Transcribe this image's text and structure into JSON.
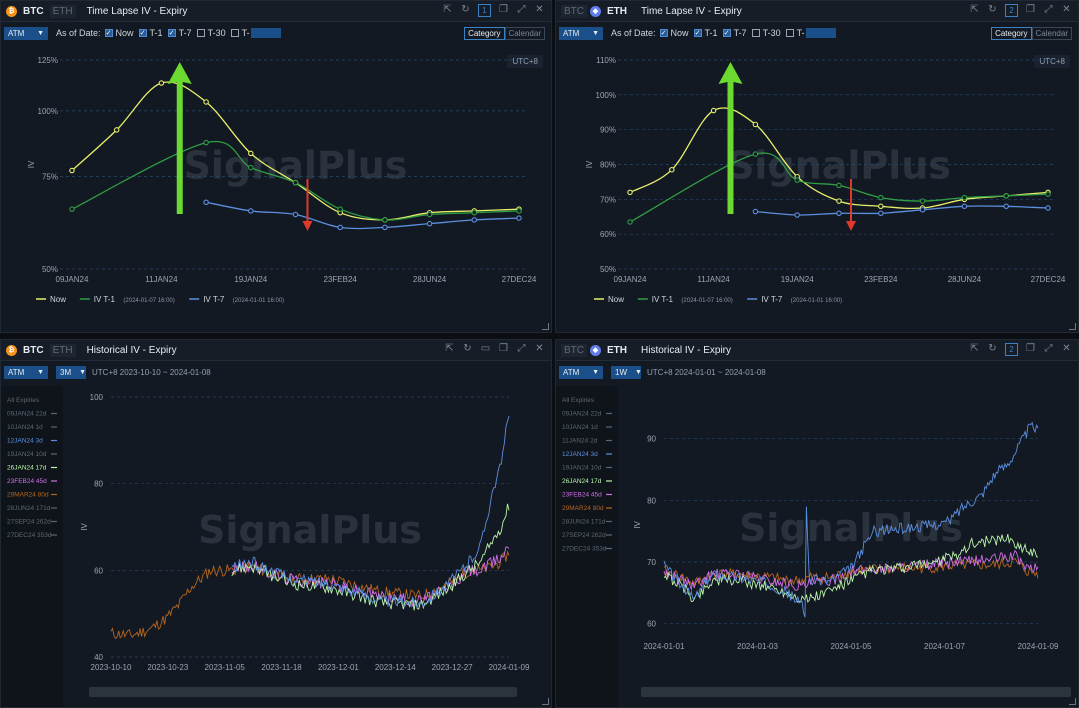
{
  "panels": [
    {
      "id": "tl",
      "assets": [
        "BTC",
        "ETH"
      ],
      "active_asset": "BTC",
      "title": "Time Lapse IV - Expiry",
      "badge": "1",
      "toolbar": {
        "select": "ATM",
        "as_of": "As of Date:",
        "checks": [
          {
            "label": "Now",
            "on": true
          },
          {
            "label": "T-1",
            "on": true
          },
          {
            "label": "T-7",
            "on": true
          },
          {
            "label": "T-30",
            "on": false
          },
          {
            "label": "T-",
            "on": false
          }
        ]
      },
      "view_tabs": [
        "Category",
        "Calendar"
      ],
      "active_tab": "Category",
      "tz": "UTC+8",
      "watermark": "SignalPlus"
    },
    {
      "id": "tr",
      "assets": [
        "BTC",
        "ETH"
      ],
      "active_asset": "ETH",
      "title": "Time Lapse IV - Expiry",
      "badge": "2",
      "toolbar": {
        "select": "ATM",
        "as_of": "As of Date:",
        "checks": [
          {
            "label": "Now",
            "on": true
          },
          {
            "label": "T-1",
            "on": true
          },
          {
            "label": "T-7",
            "on": true
          },
          {
            "label": "T-30",
            "on": false
          },
          {
            "label": "T-",
            "on": false
          }
        ]
      },
      "view_tabs": [
        "Category",
        "Calendar"
      ],
      "active_tab": "Category",
      "tz": "UTC+8",
      "watermark": "SignalPlus"
    },
    {
      "id": "bl",
      "assets": [
        "BTC",
        "ETH"
      ],
      "active_asset": "BTC",
      "title": "Historical IV - Expiry",
      "toolbar": {
        "select": "ATM",
        "period": "3M",
        "range": "UTC+8 2023-10-10 ~ 2024-01-08"
      },
      "expiries": [
        {
          "label": "All Expiries",
          "color": "#5c6672"
        },
        {
          "label": "09JAN24 22d",
          "color": "#5c6672"
        },
        {
          "label": "10JAN24 1d",
          "color": "#5c6672"
        },
        {
          "label": "12JAN24 3d",
          "color": "#5b8fe0"
        },
        {
          "label": "19JAN24 10d",
          "color": "#5c6672"
        },
        {
          "label": "26JAN24 17d",
          "color": "#b9f5a8"
        },
        {
          "label": "23FEB24 45d",
          "color": "#d06ee8"
        },
        {
          "label": "29MAR24 80d",
          "color": "#b5651d"
        },
        {
          "label": "28JUN24 171d",
          "color": "#5c6672"
        },
        {
          "label": "27SEP24 262d",
          "color": "#5c6672"
        },
        {
          "label": "27DEC24 353d",
          "color": "#5c6672"
        }
      ],
      "watermark": "SignalPlus"
    },
    {
      "id": "br",
      "assets": [
        "BTC",
        "ETH"
      ],
      "active_asset": "ETH",
      "title": "Historical IV - Expiry",
      "badge": "2",
      "toolbar": {
        "select": "ATM",
        "period": "1W",
        "range": "UTC+8 2024-01-01 ~ 2024-01-08"
      },
      "expiries": [
        {
          "label": "All Expiries",
          "color": "#5c6672"
        },
        {
          "label": "09JAN24 22d",
          "color": "#5c6672"
        },
        {
          "label": "10JAN24 1d",
          "color": "#5c6672"
        },
        {
          "label": "11JAN24 2d",
          "color": "#5c6672"
        },
        {
          "label": "12JAN24 3d",
          "color": "#5b8fe0"
        },
        {
          "label": "19JAN24 10d",
          "color": "#5c6672"
        },
        {
          "label": "26JAN24 17d",
          "color": "#b9f5a8"
        },
        {
          "label": "23FEB24 45d",
          "color": "#d06ee8"
        },
        {
          "label": "29MAR24 80d",
          "color": "#b5651d"
        },
        {
          "label": "28JUN24 171d",
          "color": "#5c6672"
        },
        {
          "label": "27SEP24 262d",
          "color": "#5c6672"
        },
        {
          "label": "27DEC24 353d",
          "color": "#5c6672"
        }
      ],
      "watermark": "SignalPlus"
    }
  ],
  "chart_data": [
    {
      "type": "line",
      "ylabel": "IV",
      "yscale": "log",
      "ylim": [
        50,
        125
      ],
      "yticks": [
        "125%",
        "100%",
        "75%",
        "50%"
      ],
      "ytick_values": [
        125,
        100,
        75,
        50
      ],
      "categories": [
        "09JAN24",
        "10JAN24",
        "11JAN24",
        "12JAN24",
        "19JAN24",
        "26JAN24",
        "23FEB24",
        "29MAR24",
        "28JUN24",
        "27SEP24",
        "27DEC24"
      ],
      "xtick_labels": [
        "09JAN24",
        "11JAN24",
        "19JAN24",
        "23FEB24",
        "28JUN24",
        "27DEC24"
      ],
      "series": [
        {
          "name": "Now",
          "color": "#e8ef6a",
          "values": [
            77,
            92,
            113,
            104,
            83,
            73,
            64,
            62,
            64,
            64.5,
            65
          ]
        },
        {
          "name": "IV T-1",
          "sub": "(2024-01-07 16:00)",
          "color": "#2f9e44",
          "values": [
            65,
            null,
            null,
            87,
            78,
            73,
            65,
            62,
            63.5,
            64,
            64.5
          ]
        },
        {
          "name": "IV T-7",
          "sub": "(2024-01-01 16:00)",
          "color": "#5b8fe0",
          "values": [
            null,
            null,
            null,
            67,
            64.5,
            63.5,
            60,
            60,
            61,
            62,
            62.5
          ]
        }
      ],
      "annotations": [
        {
          "kind": "arrow-up",
          "color": "#6bd92f"
        },
        {
          "kind": "arrow-down",
          "color": "#e0382b"
        }
      ],
      "legend": "bottom-left"
    },
    {
      "type": "line",
      "ylabel": "IV",
      "ylim": [
        50,
        110
      ],
      "yticks": [
        "110%",
        "100%",
        "90%",
        "80%",
        "70%",
        "60%",
        "50%"
      ],
      "ytick_values": [
        110,
        100,
        90,
        80,
        70,
        60,
        50
      ],
      "categories": [
        "09JAN24",
        "10JAN24",
        "11JAN24",
        "12JAN24",
        "19JAN24",
        "26JAN24",
        "23FEB24",
        "29MAR24",
        "28JUN24",
        "27SEP24",
        "27DEC24"
      ],
      "xtick_labels": [
        "09JAN24",
        "11JAN24",
        "19JAN24",
        "23FEB24",
        "28JUN24",
        "27DEC24"
      ],
      "series": [
        {
          "name": "Now",
          "color": "#e8ef6a",
          "values": [
            72,
            78.5,
            95.5,
            91.5,
            76.5,
            69.5,
            68,
            67.5,
            70,
            71,
            72
          ]
        },
        {
          "name": "IV T-1",
          "sub": "(2024-01-07 16:00)",
          "color": "#2f9e44",
          "values": [
            63.5,
            null,
            null,
            83,
            75.5,
            74,
            70.5,
            69.5,
            70.5,
            71,
            71.5
          ]
        },
        {
          "name": "IV T-7",
          "sub": "(2024-01-01 16:00)",
          "color": "#5b8fe0",
          "values": [
            null,
            null,
            null,
            66.5,
            65.5,
            66,
            66,
            67,
            68,
            68,
            67.5
          ]
        }
      ],
      "annotations": [
        {
          "kind": "arrow-up",
          "color": "#6bd92f"
        },
        {
          "kind": "arrow-down",
          "color": "#e0382b"
        }
      ],
      "legend": "bottom-left"
    },
    {
      "type": "line",
      "ylabel": "IV",
      "ylim": [
        40,
        100
      ],
      "yticks": [
        "100",
        "80",
        "60",
        "40"
      ],
      "ytick_values": [
        100,
        80,
        60,
        40
      ],
      "x_start": "2023-10-10",
      "x_end": "2024-01-09",
      "xtick_labels": [
        "2023-10-10",
        "2023-10-23",
        "2023-11-05",
        "2023-11-18",
        "2023-12-01",
        "2023-12-14",
        "2023-12-27",
        "2024-01-09"
      ],
      "series": [
        {
          "name": "12JAN24 3d",
          "color": "#5b8fe0",
          "anchors": [
            [
              0.0,
              null
            ],
            [
              0.25,
              null
            ],
            [
              0.3,
              60.5
            ],
            [
              0.35,
              62
            ],
            [
              0.45,
              58
            ],
            [
              0.55,
              57
            ],
            [
              0.68,
              53
            ],
            [
              0.78,
              52.5
            ],
            [
              0.85,
              57
            ],
            [
              0.9,
              62
            ],
            [
              0.93,
              66
            ],
            [
              0.96,
              79
            ],
            [
              0.98,
              84
            ],
            [
              1.0,
              97
            ]
          ]
        },
        {
          "name": "26JAN24 17d",
          "color": "#b9f5a8",
          "anchors": [
            [
              0.0,
              null
            ],
            [
              0.25,
              null
            ],
            [
              0.3,
              60
            ],
            [
              0.35,
              61
            ],
            [
              0.45,
              57
            ],
            [
              0.55,
              56
            ],
            [
              0.68,
              52.5
            ],
            [
              0.78,
              52
            ],
            [
              0.85,
              56
            ],
            [
              0.9,
              60
            ],
            [
              0.93,
              62
            ],
            [
              0.96,
              67
            ],
            [
              0.98,
              70
            ],
            [
              1.0,
              75
            ]
          ]
        },
        {
          "name": "23FEB24 45d",
          "color": "#d06ee8",
          "anchors": [
            [
              0.0,
              null
            ],
            [
              0.25,
              null
            ],
            [
              0.3,
              60
            ],
            [
              0.35,
              61
            ],
            [
              0.45,
              58
            ],
            [
              0.55,
              57
            ],
            [
              0.68,
              54
            ],
            [
              0.78,
              53
            ],
            [
              0.85,
              56
            ],
            [
              0.9,
              60
            ],
            [
              0.93,
              60
            ],
            [
              0.96,
              62
            ],
            [
              0.98,
              63
            ],
            [
              1.0,
              66
            ]
          ]
        },
        {
          "name": "29MAR24 80d",
          "color": "#b5651d",
          "anchors": [
            [
              0.0,
              45.5
            ],
            [
              0.05,
              45
            ],
            [
              0.1,
              46.5
            ],
            [
              0.14,
              49
            ],
            [
              0.17,
              52
            ],
            [
              0.2,
              56
            ],
            [
              0.25,
              60
            ],
            [
              0.3,
              60
            ],
            [
              0.35,
              61
            ],
            [
              0.45,
              58
            ],
            [
              0.55,
              58
            ],
            [
              0.68,
              55
            ],
            [
              0.78,
              54
            ],
            [
              0.85,
              57
            ],
            [
              0.9,
              60
            ],
            [
              0.93,
              60
            ],
            [
              0.96,
              61
            ],
            [
              0.98,
              62
            ],
            [
              1.0,
              64
            ]
          ]
        }
      ],
      "legend": "left-sidebar"
    },
    {
      "type": "line",
      "ylabel": "IV",
      "ylim": [
        58,
        94
      ],
      "yticks": [
        "90",
        "80",
        "70",
        "60"
      ],
      "ytick_values": [
        90,
        80,
        70,
        60
      ],
      "x_start": "2024-01-01",
      "x_end": "2024-01-09",
      "xtick_labels": [
        "2024-01-01",
        "2024-01-03",
        "2024-01-05",
        "2024-01-07",
        "2024-01-09"
      ],
      "series": [
        {
          "name": "12JAN24 3d",
          "color": "#5b8fe0",
          "anchors": [
            [
              0.0,
              69.5
            ],
            [
              0.05,
              66
            ],
            [
              0.08,
              64
            ],
            [
              0.13,
              68
            ],
            [
              0.2,
              67.5
            ],
            [
              0.28,
              66.5
            ],
            [
              0.33,
              65
            ],
            [
              0.37,
              63
            ],
            [
              0.378,
              61
            ],
            [
              0.382,
              87
            ],
            [
              0.386,
              67
            ],
            [
              0.45,
              67
            ],
            [
              0.5,
              69
            ],
            [
              0.53,
              72
            ],
            [
              0.56,
              75
            ],
            [
              0.65,
              75.5
            ],
            [
              0.72,
              76
            ],
            [
              0.76,
              76.5
            ],
            [
              0.8,
              79
            ],
            [
              0.85,
              81
            ],
            [
              0.88,
              84
            ],
            [
              0.92,
              86
            ],
            [
              0.95,
              89
            ],
            [
              0.98,
              92
            ],
            [
              1.0,
              91.5
            ]
          ]
        },
        {
          "name": "26JAN24 17d",
          "color": "#b9f5a8",
          "anchors": [
            [
              0.0,
              68
            ],
            [
              0.05,
              66
            ],
            [
              0.08,
              64
            ],
            [
              0.13,
              67
            ],
            [
              0.2,
              67
            ],
            [
              0.28,
              66
            ],
            [
              0.33,
              65
            ],
            [
              0.37,
              64
            ],
            [
              0.39,
              64
            ],
            [
              0.45,
              65.5
            ],
            [
              0.5,
              67
            ],
            [
              0.55,
              68.5
            ],
            [
              0.65,
              69
            ],
            [
              0.72,
              70
            ],
            [
              0.78,
              71
            ],
            [
              0.82,
              73
            ],
            [
              0.88,
              73.5
            ],
            [
              0.92,
              74
            ],
            [
              0.96,
              72
            ],
            [
              1.0,
              71.5
            ]
          ]
        },
        {
          "name": "23FEB24 45d",
          "color": "#d06ee8",
          "anchors": [
            [
              0.0,
              68.5
            ],
            [
              0.05,
              67
            ],
            [
              0.08,
              66
            ],
            [
              0.13,
              68
            ],
            [
              0.2,
              68
            ],
            [
              0.28,
              67
            ],
            [
              0.33,
              66.5
            ],
            [
              0.37,
              66
            ],
            [
              0.39,
              66.5
            ],
            [
              0.45,
              67
            ],
            [
              0.5,
              68.5
            ],
            [
              0.6,
              69
            ],
            [
              0.7,
              69.5
            ],
            [
              0.8,
              70
            ],
            [
              0.88,
              70.5
            ],
            [
              0.94,
              71
            ],
            [
              0.97,
              69
            ],
            [
              1.0,
              69
            ]
          ]
        },
        {
          "name": "29MAR24 80d",
          "color": "#b5651d",
          "anchors": [
            [
              0.0,
              68.5
            ],
            [
              0.05,
              67.5
            ],
            [
              0.08,
              66.5
            ],
            [
              0.13,
              68
            ],
            [
              0.2,
              68
            ],
            [
              0.28,
              67.5
            ],
            [
              0.33,
              67
            ],
            [
              0.37,
              67
            ],
            [
              0.39,
              67.5
            ],
            [
              0.45,
              67.5
            ],
            [
              0.5,
              68.5
            ],
            [
              0.6,
              69
            ],
            [
              0.7,
              69
            ],
            [
              0.8,
              69.5
            ],
            [
              0.88,
              69.5
            ],
            [
              0.94,
              70
            ],
            [
              0.97,
              68.5
            ],
            [
              1.0,
              68
            ]
          ]
        }
      ],
      "legend": "left-sidebar"
    }
  ]
}
